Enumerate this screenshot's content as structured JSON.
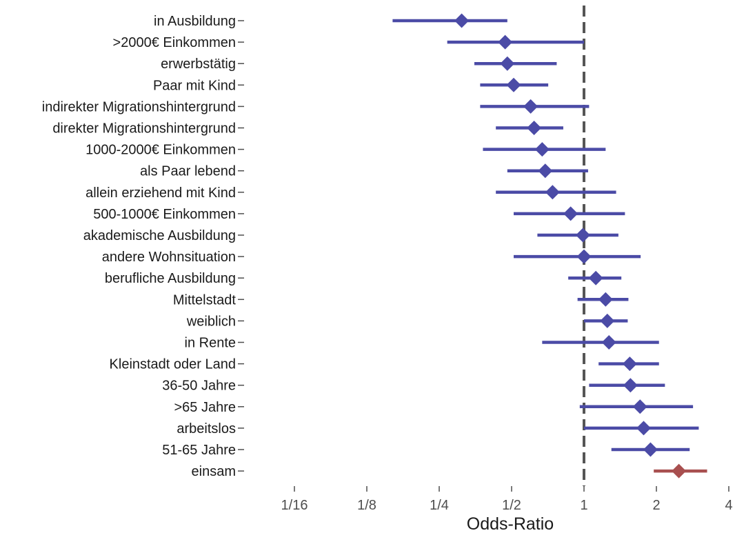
{
  "chart_data": {
    "type": "forest",
    "xlabel": "Odds-Ratio",
    "x_scale": "log2",
    "xlim": [
      0.0625,
      4
    ],
    "x_ticks": [
      {
        "value": 0.0625,
        "label": "1/16"
      },
      {
        "value": 0.125,
        "label": "1/8"
      },
      {
        "value": 0.25,
        "label": "1/4"
      },
      {
        "value": 0.5,
        "label": "1/2"
      },
      {
        "value": 1,
        "label": "1"
      },
      {
        "value": 2,
        "label": "2"
      },
      {
        "value": 4,
        "label": "4"
      }
    ],
    "reference_line": 1,
    "grid": false,
    "colors": {
      "default": "#4b4ba6",
      "highlight": "#a84f4f",
      "reference": "#555555"
    },
    "rows": [
      {
        "label": "in Ausbildung",
        "or": 0.31,
        "lower": 0.16,
        "upper": 0.48
      },
      {
        "label": ">2000€ Einkommen",
        "or": 0.47,
        "lower": 0.27,
        "upper": 1.0
      },
      {
        "label": "erwerbstätig",
        "or": 0.48,
        "lower": 0.35,
        "upper": 0.77
      },
      {
        "label": "Paar mit Kind",
        "or": 0.51,
        "lower": 0.37,
        "upper": 0.71
      },
      {
        "label": "indirekter Migrationshintergrund",
        "or": 0.6,
        "lower": 0.37,
        "upper": 1.05
      },
      {
        "label": "direkter Migrationshintergrund",
        "or": 0.62,
        "lower": 0.43,
        "upper": 0.82
      },
      {
        "label": "1000-2000€ Einkommen",
        "or": 0.67,
        "lower": 0.38,
        "upper": 1.23
      },
      {
        "label": "als Paar lebend",
        "or": 0.69,
        "lower": 0.48,
        "upper": 1.04
      },
      {
        "label": "allein erziehend mit Kind",
        "or": 0.74,
        "lower": 0.43,
        "upper": 1.36
      },
      {
        "label": "500-1000€ Einkommen",
        "or": 0.88,
        "lower": 0.51,
        "upper": 1.48
      },
      {
        "label": "akademische Ausbildung",
        "or": 0.99,
        "lower": 0.64,
        "upper": 1.39
      },
      {
        "label": "andere Wohnsituation",
        "or": 1.0,
        "lower": 0.51,
        "upper": 1.72
      },
      {
        "label": "berufliche Ausbildung",
        "or": 1.12,
        "lower": 0.86,
        "upper": 1.43
      },
      {
        "label": "Mittelstadt",
        "or": 1.23,
        "lower": 0.94,
        "upper": 1.53
      },
      {
        "label": "weiblich",
        "or": 1.25,
        "lower": 1.0,
        "upper": 1.52
      },
      {
        "label": "in Rente",
        "or": 1.27,
        "lower": 0.67,
        "upper": 2.05
      },
      {
        "label": "Kleinstadt oder Land",
        "or": 1.55,
        "lower": 1.15,
        "upper": 2.05
      },
      {
        "label": "36-50 Jahre",
        "or": 1.56,
        "lower": 1.05,
        "upper": 2.17
      },
      {
        "label": ">65 Jahre",
        "or": 1.71,
        "lower": 0.96,
        "upper": 2.84
      },
      {
        "label": "arbeitslos",
        "or": 1.77,
        "lower": 1.0,
        "upper": 3.0
      },
      {
        "label": "51-65 Jahre",
        "or": 1.89,
        "lower": 1.3,
        "upper": 2.75
      },
      {
        "label": "einsam",
        "or": 2.48,
        "lower": 1.95,
        "upper": 3.25,
        "highlight": true
      }
    ]
  }
}
